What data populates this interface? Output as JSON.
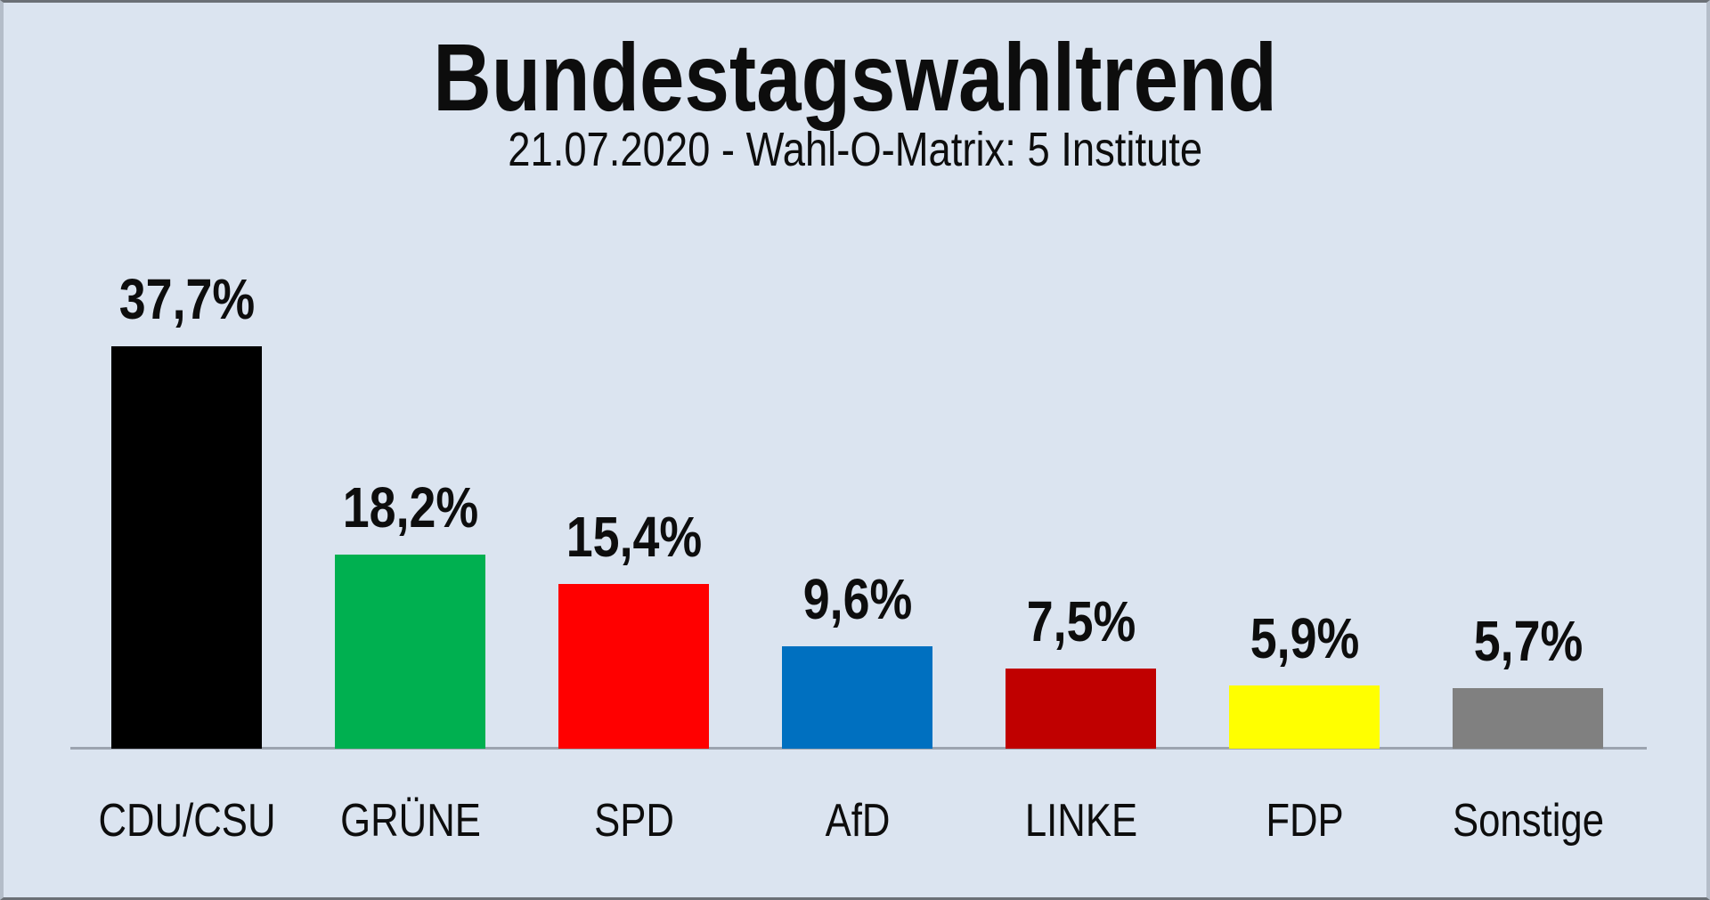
{
  "header": {
    "title": "Bundestagswahltrend",
    "subtitle": "21.07.2020 - Wahl-O-Matrix: 5 Institute"
  },
  "chart_data": {
    "type": "bar",
    "title": "Bundestagswahltrend",
    "subtitle": "21.07.2020 - Wahl-O-Matrix: 5 Institute",
    "categories": [
      "CDU/CSU",
      "GRÜNE",
      "SPD",
      "AfD",
      "LINKE",
      "FDP",
      "Sonstige"
    ],
    "values": [
      37.7,
      18.2,
      15.4,
      9.6,
      7.5,
      5.9,
      5.7
    ],
    "value_labels": [
      "37,7%",
      "18,2%",
      "15,4%",
      "9,6%",
      "7,5%",
      "5,9%",
      "5,7%"
    ],
    "bar_colors": [
      "#000000",
      "#00B050",
      "#FF0000",
      "#0070C0",
      "#C00000",
      "#FFFF00",
      "#808080"
    ],
    "xlabel": "",
    "ylabel": "",
    "ylim": [
      0,
      40
    ],
    "grid": false,
    "legend": false,
    "value_label_position": "above-bars",
    "background_color": "#dbe4f0",
    "axis_line_color": "#9ca4b0",
    "text_color": "#0d0d0d"
  }
}
